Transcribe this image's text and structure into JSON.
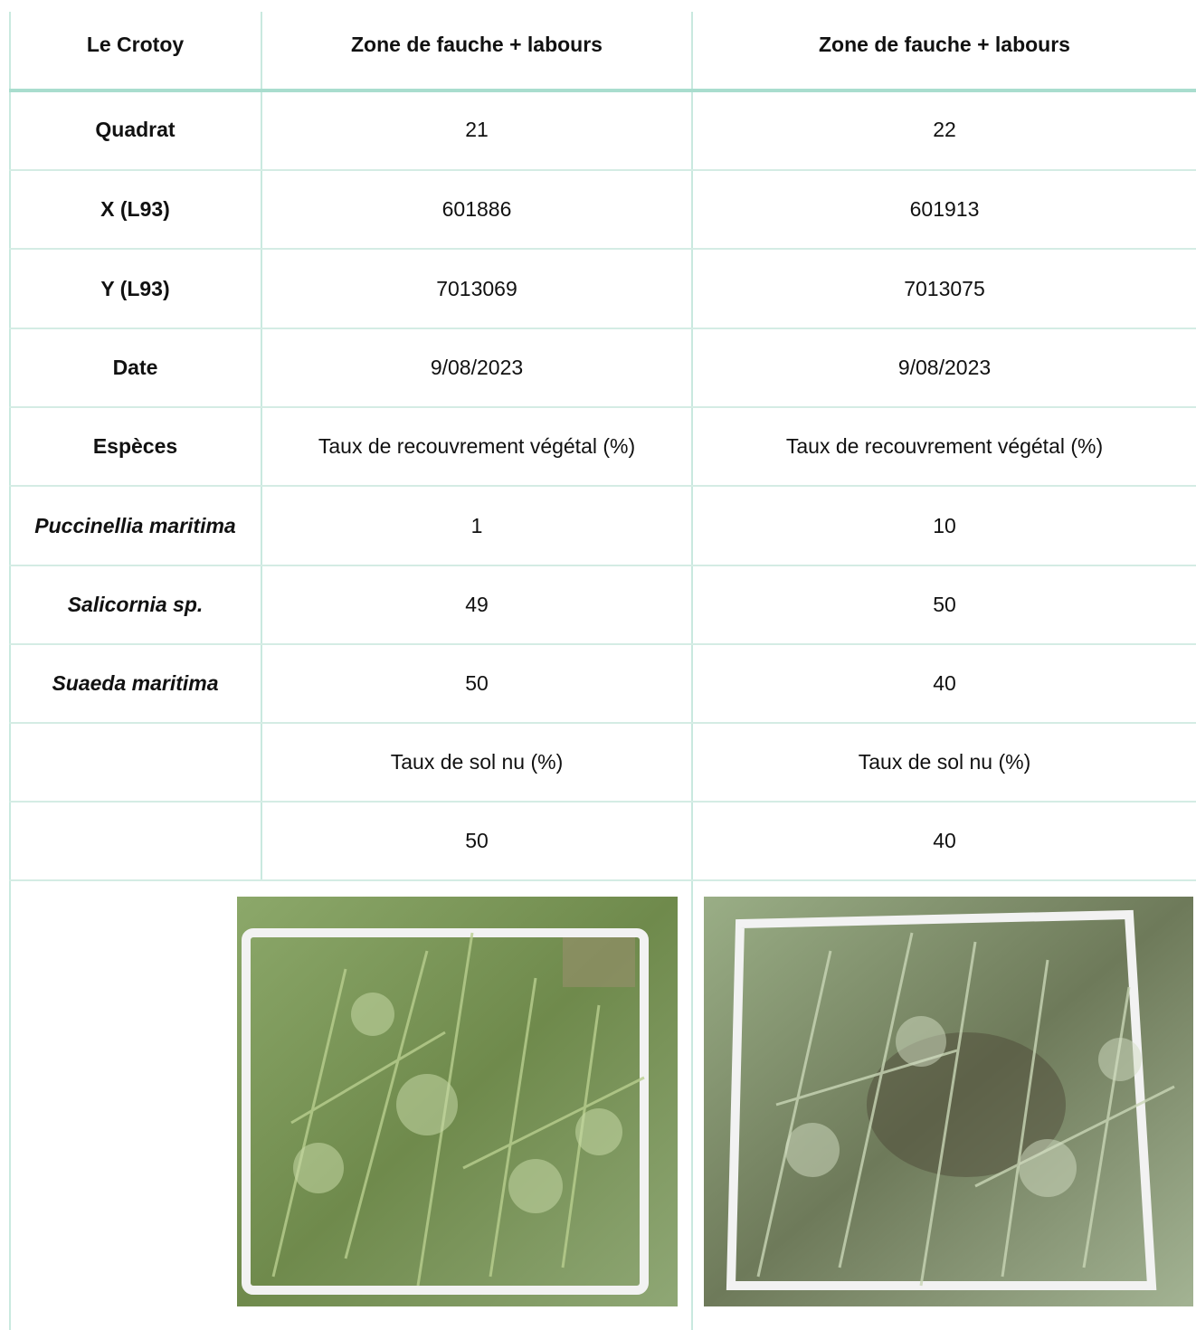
{
  "header": {
    "site": "Le Crotoy",
    "col1": "Zone de fauche + labours",
    "col2": "Zone de fauche + labours"
  },
  "rows": [
    {
      "label": "Quadrat",
      "v1": "21",
      "v2": "22",
      "style": "bold"
    },
    {
      "label": "X (L93)",
      "v1": "601886",
      "v2": "601913",
      "style": "bold"
    },
    {
      "label": "Y (L93)",
      "v1": "7013069",
      "v2": "7013075",
      "style": "bold"
    },
    {
      "label": "Date",
      "v1": "9/08/2023",
      "v2": "9/08/2023",
      "style": "bold"
    },
    {
      "label": "Espèces",
      "v1": "Taux de recouvrement végétal (%)",
      "v2": "Taux de recouvrement végétal (%)",
      "style": "bold"
    },
    {
      "label": "Puccinellia maritima",
      "v1": "1",
      "v2": "10",
      "style": "italic"
    },
    {
      "label": "Salicornia sp.",
      "v1": "49",
      "v2": "50",
      "style": "italic"
    },
    {
      "label": "Suaeda maritima",
      "v1": "50",
      "v2": "40",
      "style": "italic"
    },
    {
      "label": "",
      "v1": "Taux de sol nu (%)",
      "v2": "Taux de sol nu (%)",
      "style": "bold"
    },
    {
      "label": "",
      "v1": "50",
      "v2": "40",
      "style": "bold"
    }
  ],
  "colors": {
    "grid": "#c9e9df",
    "header_rule": "#a9ddce",
    "vegetation": "#7e9a5a",
    "quadrat_frame": "#f2f2f2"
  }
}
